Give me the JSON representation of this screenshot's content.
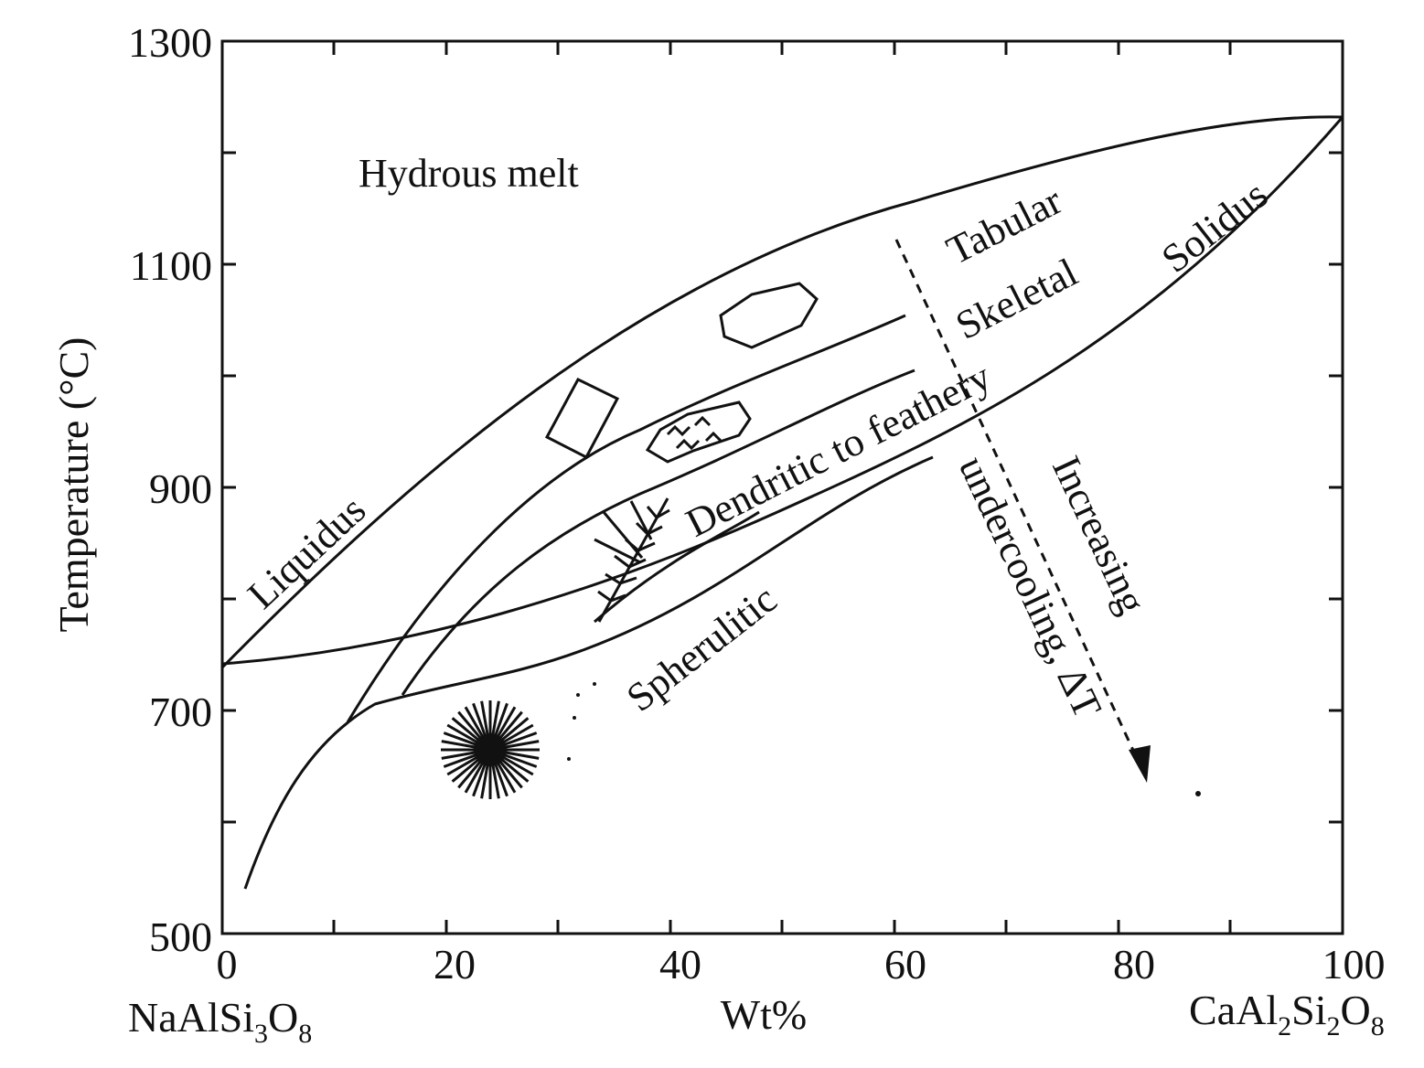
{
  "diagram": {
    "axes": {
      "y_label": "Temperature (°C)",
      "x_label": "Wt%",
      "left_endmember": {
        "base": "NaAlSi",
        "s1": "3",
        "mid": "O",
        "s2": "8"
      },
      "right_endmember": {
        "base": "CaAl",
        "s1": "2",
        "mid": "Si",
        "s2": "2",
        "mid2": "O",
        "s3": "8"
      },
      "x_ticks": [
        "0",
        "20",
        "40",
        "60",
        "80",
        "100"
      ],
      "y_ticks": [
        "500",
        "700",
        "900",
        "1100",
        "1300"
      ]
    },
    "regions": {
      "hydrous_melt": "Hydrous melt",
      "liquidus": "Liquidus",
      "solidus": "Solidus",
      "tabular": "Tabular",
      "skeletal": "Skeletal",
      "dendritic": "Dendritic to feathery",
      "spherulitic": "Spherulitic"
    },
    "arrow": {
      "line1": "Increasing",
      "line2": "undercooling, ΔT"
    },
    "colors": {
      "ink": "#111111",
      "paper": "#ffffff"
    }
  }
}
